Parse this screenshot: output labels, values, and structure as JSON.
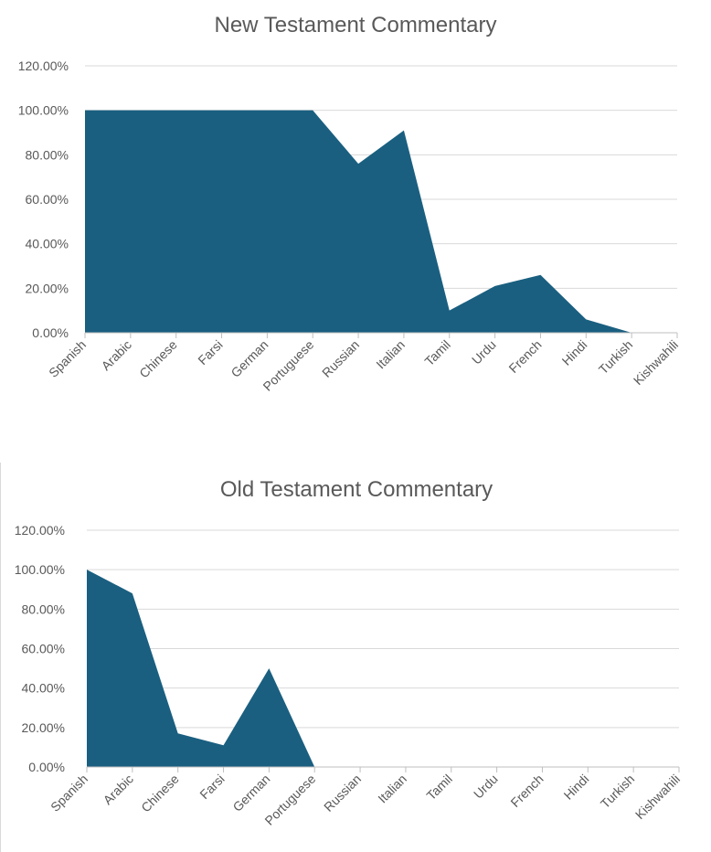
{
  "chart_data": [
    {
      "type": "area",
      "title": "New Testament Commentary",
      "categories": [
        "Spanish",
        "Arabic",
        "Chinese",
        "Farsi",
        "German",
        "Portuguese",
        "Russian",
        "Italian",
        "Tamil",
        "Urdu",
        "French",
        "Hindi",
        "Turkish",
        "Kishwahili"
      ],
      "values": [
        100,
        100,
        100,
        100,
        100,
        100,
        76,
        91,
        10,
        21,
        26,
        6,
        0,
        0
      ],
      "ylim": [
        0,
        120
      ],
      "yticks": [
        "0.00%",
        "20.00%",
        "40.00%",
        "60.00%",
        "80.00%",
        "100.00%",
        "120.00%"
      ],
      "color": "#1a5f80",
      "grid": true
    },
    {
      "type": "area",
      "title": "Old Testament Commentary",
      "categories": [
        "Spanish",
        "Arabic",
        "Chinese",
        "Farsi",
        "German",
        "Portuguese",
        "Russian",
        "Italian",
        "Tamil",
        "Urdu",
        "French",
        "Hindi",
        "Turkish",
        "Kishwahili"
      ],
      "values": [
        100,
        88,
        17,
        11,
        50,
        0,
        0,
        0,
        0,
        0,
        0,
        0,
        0,
        0
      ],
      "ylim": [
        0,
        120
      ],
      "yticks": [
        "0.00%",
        "20.00%",
        "40.00%",
        "60.00%",
        "80.00%",
        "100.00%",
        "120.00%"
      ],
      "color": "#1a5f80",
      "grid": true
    }
  ]
}
